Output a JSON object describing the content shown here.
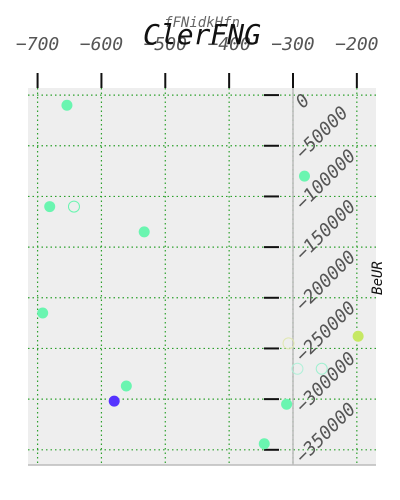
{
  "chart_data": {
    "type": "scatter",
    "title": "ClerFNG",
    "xlabel": "fFNidkHfn",
    "ylabel": "BeUR",
    "xlim": [
      -715,
      -170
    ],
    "ylim": [
      -365000,
      7000
    ],
    "x_ticks": [
      -700,
      -600,
      -500,
      -400,
      -300,
      -200
    ],
    "y_ticks": [
      0,
      -50000,
      -100000,
      -150000,
      -200000,
      -250000,
      -300000,
      -350000
    ],
    "x_tick_labels": [
      "−700",
      "−600",
      "−500",
      "−400",
      "−300",
      "−200"
    ],
    "y_tick_labels": [
      "0",
      "−50000",
      "−100000",
      "−150000",
      "−200000",
      "−250000",
      "−300000",
      "−350000"
    ],
    "x_axis_position": "top",
    "y_axis_position": "at x=-300, labels rotated 45 degrees",
    "grid": true,
    "grid_color": "#2ca02c",
    "grid_style": "dotted",
    "plot_background": "#eeeeee",
    "points": [
      {
        "x": -654,
        "y": -10000,
        "color": "#6af5b0",
        "filled": true
      },
      {
        "x": -282,
        "y": -80000,
        "color": "#6af5b0",
        "filled": true
      },
      {
        "x": -681,
        "y": -110000,
        "color": "#6af5b0",
        "filled": true
      },
      {
        "x": -643,
        "y": -110000,
        "color": "#6af5b0",
        "filled": false
      },
      {
        "x": -533,
        "y": -135000,
        "color": "#6af5b0",
        "filled": true
      },
      {
        "x": -692,
        "y": -215000,
        "color": "#6af5b0",
        "filled": true
      },
      {
        "x": -198,
        "y": -238000,
        "color": "#c6e863",
        "filled": true
      },
      {
        "x": -307,
        "y": -245000,
        "color": "#e0e8b0",
        "filled": false
      },
      {
        "x": -293,
        "y": -270000,
        "color": "#b0f0d8",
        "filled": false
      },
      {
        "x": -255,
        "y": -270000,
        "color": "#9ff0d0",
        "filled": false
      },
      {
        "x": -561,
        "y": -287000,
        "color": "#6af5b0",
        "filled": true
      },
      {
        "x": -580,
        "y": -302000,
        "color": "#5533ff",
        "filled": true
      },
      {
        "x": -310,
        "y": -305000,
        "color": "#6af5b0",
        "filled": true
      },
      {
        "x": -345,
        "y": -344000,
        "color": "#6af5b0",
        "filled": true
      }
    ]
  }
}
